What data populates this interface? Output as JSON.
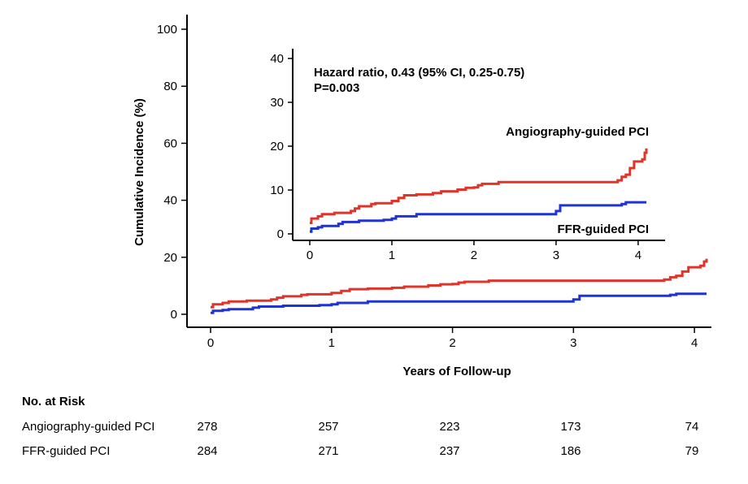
{
  "chart_data": [
    {
      "type": "line",
      "panel": "main",
      "xlabel": "Years of Follow-up",
      "ylabel": "Cumulative Incidence (%)",
      "xlim": [
        0,
        4.1
      ],
      "ylim": [
        0,
        100
      ],
      "x_ticks": [
        "0",
        "1",
        "2",
        "3",
        "4"
      ],
      "y_ticks": [
        "0",
        "20",
        "40",
        "60",
        "80",
        "100"
      ],
      "grid": false,
      "colors": {
        "angiography": "#e0342a",
        "ffr": "#1f32d6"
      },
      "series": [
        {
          "key": "angiography",
          "points": [
            [
              0,
              2.5
            ],
            [
              0.02,
              3.5
            ],
            [
              0.1,
              4.0
            ],
            [
              0.15,
              4.5
            ],
            [
              0.3,
              4.8
            ],
            [
              0.5,
              5.2
            ],
            [
              0.55,
              5.8
            ],
            [
              0.6,
              6.3
            ],
            [
              0.75,
              6.8
            ],
            [
              0.8,
              7.0
            ],
            [
              1.0,
              7.5
            ],
            [
              1.08,
              8.2
            ],
            [
              1.15,
              8.8
            ],
            [
              1.3,
              9.0
            ],
            [
              1.5,
              9.3
            ],
            [
              1.6,
              9.7
            ],
            [
              1.8,
              10.1
            ],
            [
              1.9,
              10.5
            ],
            [
              2.0,
              10.6
            ],
            [
              2.05,
              11.1
            ],
            [
              2.1,
              11.4
            ],
            [
              2.3,
              11.8
            ],
            [
              3.7,
              11.8
            ],
            [
              3.75,
              12.2
            ],
            [
              3.8,
              13.0
            ],
            [
              3.85,
              13.5
            ],
            [
              3.9,
              15.0
            ],
            [
              3.95,
              16.5
            ],
            [
              4.05,
              17.0
            ],
            [
              4.08,
              18.5
            ],
            [
              4.1,
              19.5
            ]
          ]
        },
        {
          "key": "ffr",
          "points": [
            [
              0,
              0.5
            ],
            [
              0.02,
              1.2
            ],
            [
              0.1,
              1.5
            ],
            [
              0.15,
              1.8
            ],
            [
              0.35,
              2.3
            ],
            [
              0.4,
              2.7
            ],
            [
              0.6,
              3.0
            ],
            [
              0.9,
              3.2
            ],
            [
              1.0,
              3.5
            ],
            [
              1.05,
              4.0
            ],
            [
              1.3,
              4.5
            ],
            [
              2.95,
              4.5
            ],
            [
              3.0,
              5.2
            ],
            [
              3.05,
              6.5
            ],
            [
              3.8,
              6.8
            ],
            [
              3.85,
              7.2
            ],
            [
              4.1,
              7.2
            ]
          ]
        }
      ]
    },
    {
      "type": "line",
      "panel": "inset",
      "xlim": [
        0,
        4.1
      ],
      "ylim": [
        0,
        40
      ],
      "x_ticks": [
        "0",
        "1",
        "2",
        "3",
        "4"
      ],
      "y_ticks": [
        "0",
        "10",
        "20",
        "30",
        "40"
      ],
      "annotation_lines": [
        "Hazard ratio, 0.43 (95% CI, 0.25-0.75)",
        "P=0.003"
      ],
      "series_labels": {
        "angiography": "Angiography-guided PCI",
        "ffr": "FFR-guided PCI"
      }
    }
  ],
  "risk_table": {
    "title": "No. at Risk",
    "rows": [
      {
        "label": "Angiography-guided PCI",
        "values": [
          "278",
          "257",
          "223",
          "173",
          "74"
        ]
      },
      {
        "label": "FFR-guided PCI",
        "values": [
          "284",
          "271",
          "237",
          "186",
          "79"
        ]
      }
    ]
  }
}
